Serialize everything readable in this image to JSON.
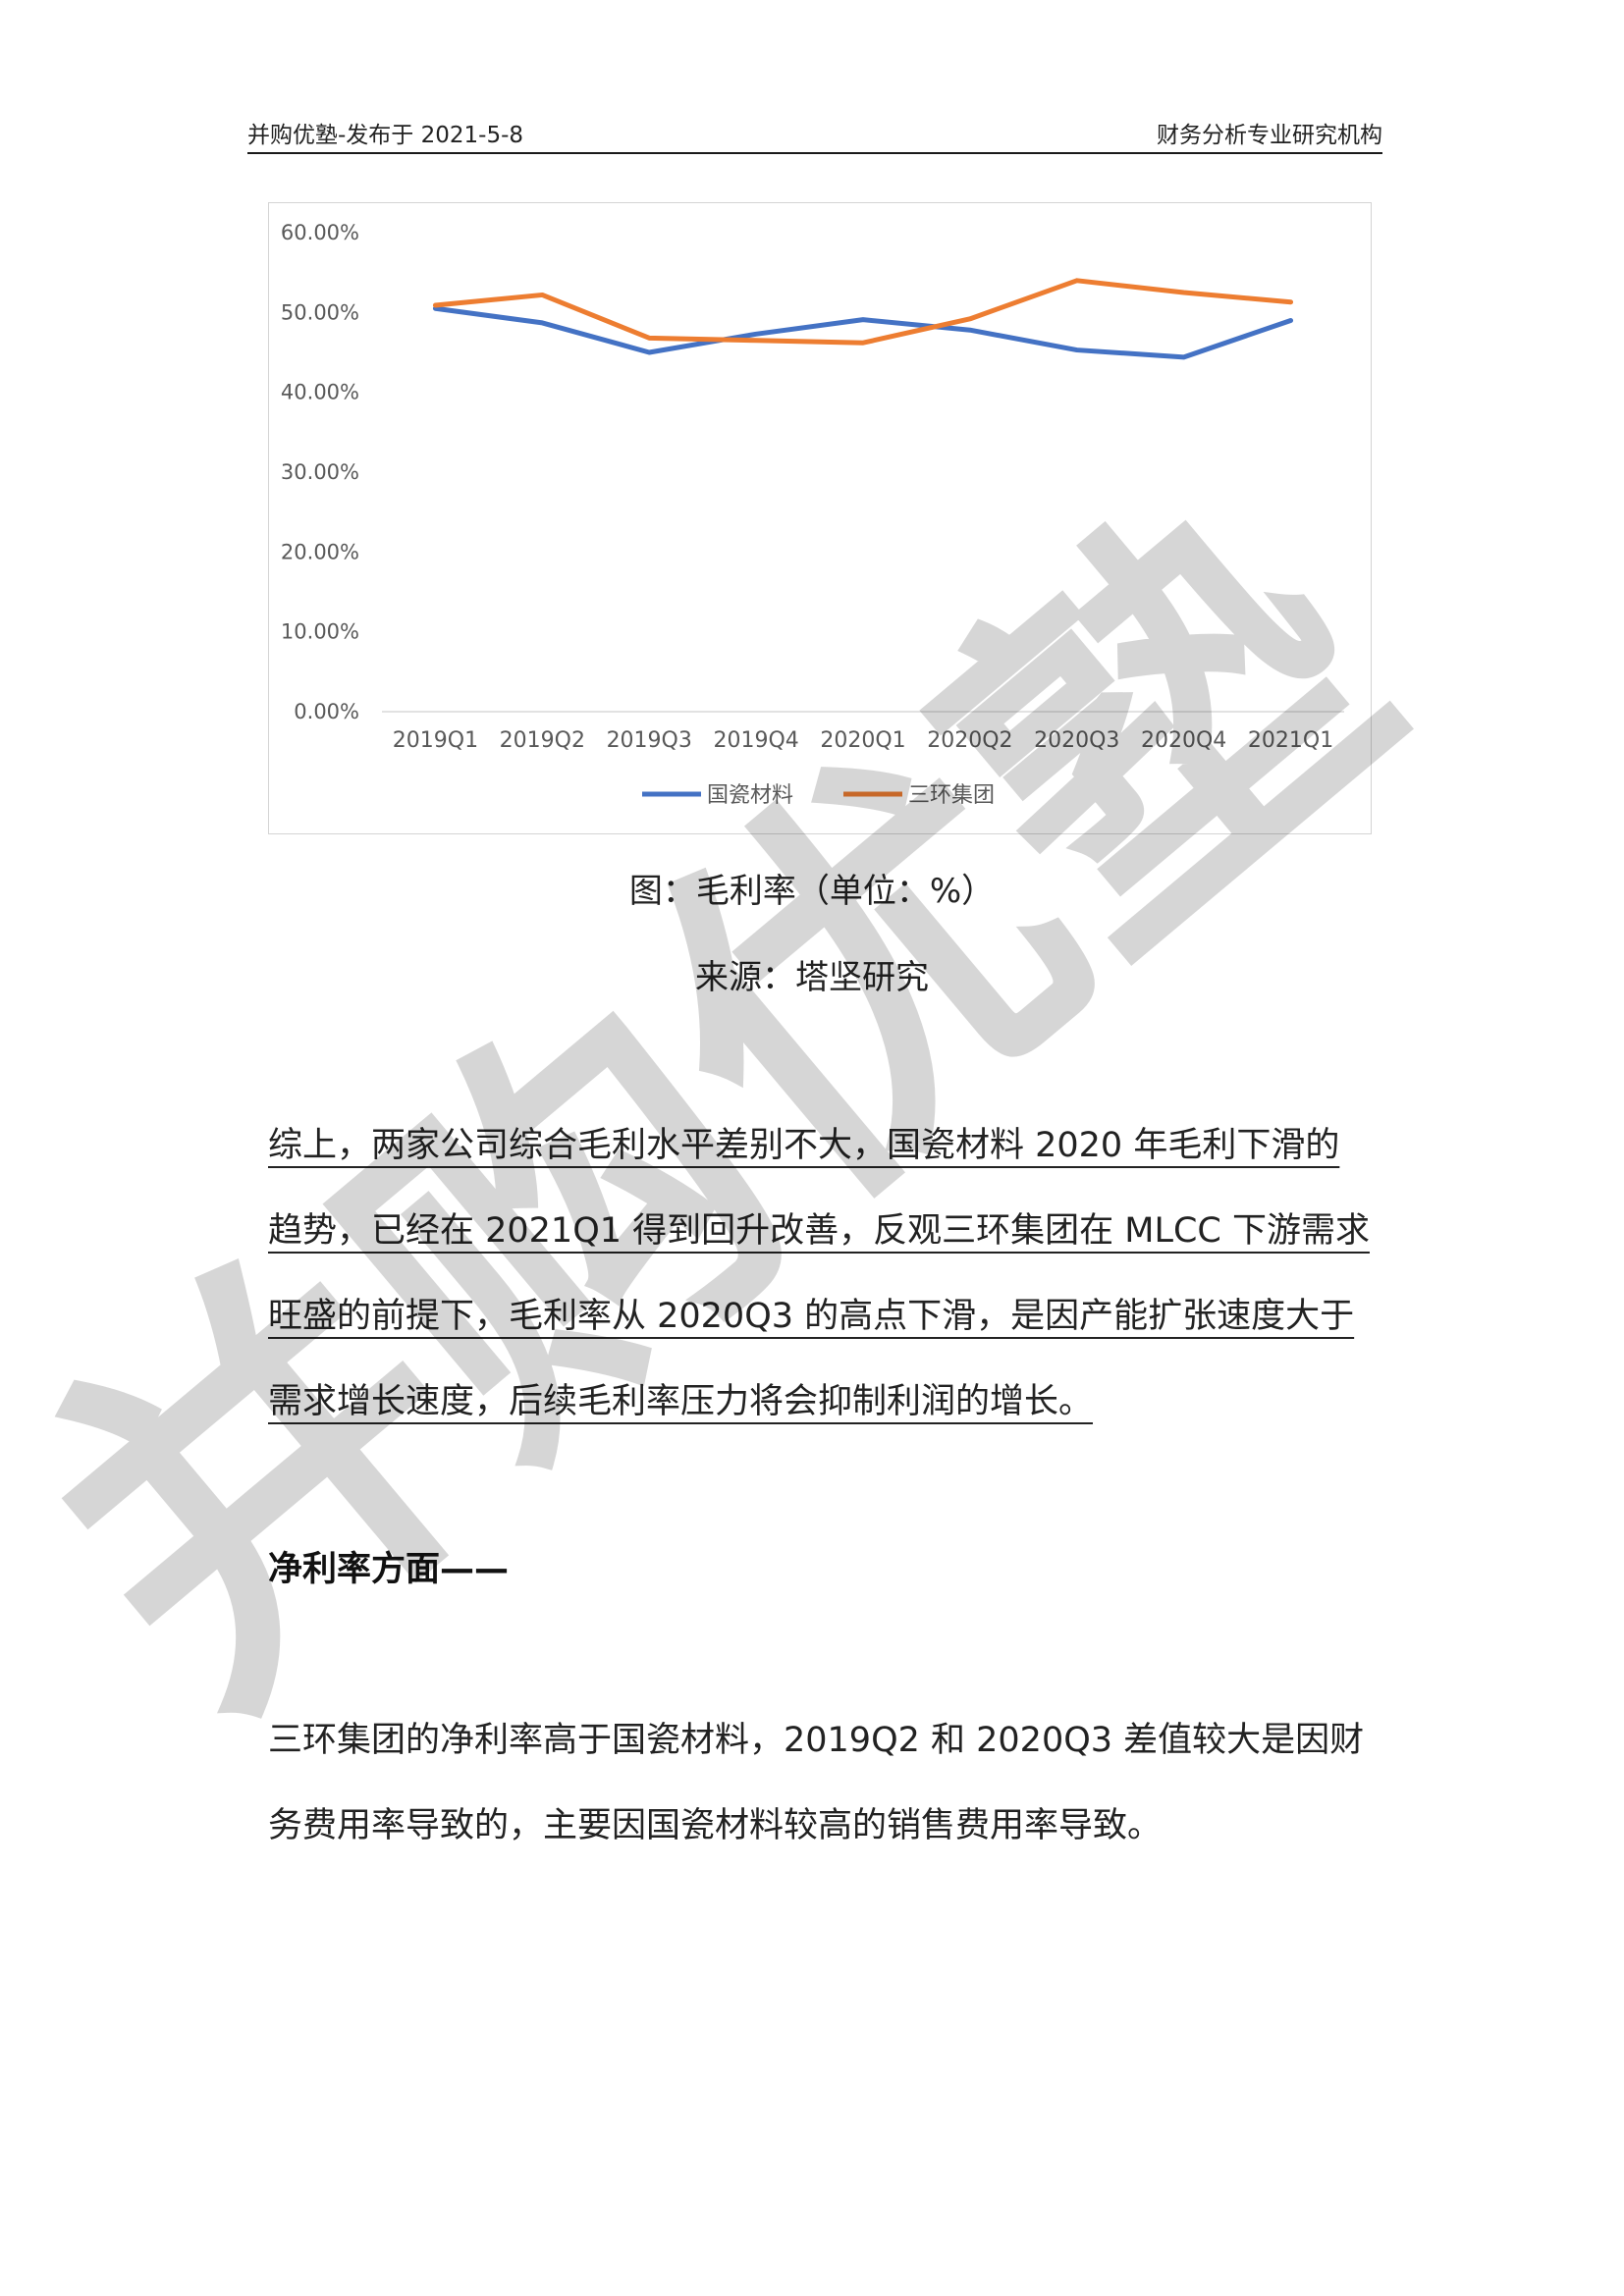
{
  "header": {
    "left_text": "并购优塾-发布于 2021-5-8",
    "right_text": "财务分析专业研究机构"
  },
  "chart_data": {
    "type": "line",
    "categories": [
      "2019Q1",
      "2019Q2",
      "2019Q3",
      "2019Q4",
      "2020Q1",
      "2020Q2",
      "2020Q3",
      "2020Q4",
      "2021Q1"
    ],
    "series": [
      {
        "name": "国瓷材料",
        "color": "#4472C4",
        "values": [
          50.5,
          48.7,
          45.0,
          47.3,
          49.1,
          47.8,
          45.3,
          44.4,
          49.0
        ]
      },
      {
        "name": "三环集团",
        "color": "#ED7D31",
        "values": [
          50.9,
          52.2,
          46.8,
          46.5,
          46.2,
          49.2,
          54.0,
          52.5,
          51.3
        ]
      }
    ],
    "y_ticks": [
      "0.00%",
      "10.00%",
      "20.00%",
      "30.00%",
      "40.00%",
      "50.00%",
      "60.00%"
    ],
    "ylim": [
      0,
      60
    ],
    "title": "",
    "xlabel": "",
    "ylabel": "",
    "legend_position": "bottom",
    "grid": false
  },
  "figure": {
    "caption": "图：毛利率（单位：%）",
    "source": "来源：塔坚研究"
  },
  "body": {
    "summary_paragraph": "综上，两家公司综合毛利水平差别不大，国瓷材料 2020 年毛利下滑的趋势，已经在 2021Q1 得到回升改善，反观三环集团在 MLCC 下游需求旺盛的前提下，毛利率从 2020Q3 的高点下滑，是因产能扩张速度大于需求增长速度，后续毛利率压力将会抑制利润的增长。",
    "section_heading": "净利率方面——",
    "net_margin_paragraph": "三环集团的净利率高于国瓷材料，2019Q2 和 2020Q3 差值较大是因财务费用率导致的，主要因国瓷材料较高的销售费用率导致。"
  },
  "watermark": {
    "text": "并购优塾"
  }
}
